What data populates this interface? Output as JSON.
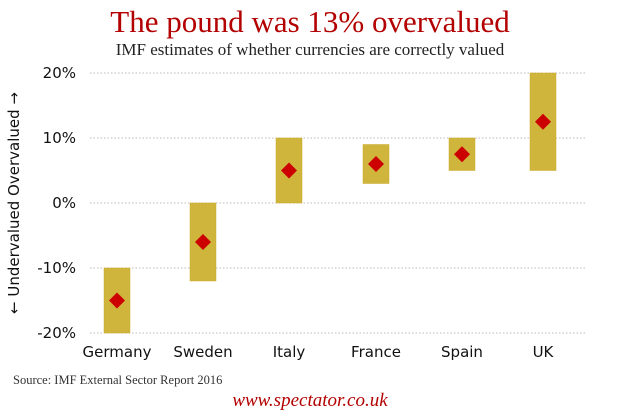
{
  "chart_data": {
    "type": "range-bar",
    "title": "The pound was 13% overvalued",
    "subtitle": "IMF estimates of whether currencies are correctly valued",
    "ylabel": "← Undervalued  Overvalued →",
    "ylim": [
      -20,
      20
    ],
    "yticks": [
      20,
      10,
      0,
      -10,
      -20
    ],
    "ytick_labels": [
      "20%",
      "10%",
      "0%",
      "-10%",
      "-20%"
    ],
    "grid": true,
    "categories": [
      "Germany",
      "Sweden",
      "Italy",
      "France",
      "Spain",
      "UK"
    ],
    "low": [
      -20,
      -12,
      0,
      3,
      5,
      5
    ],
    "high": [
      -10,
      0,
      10,
      9,
      10,
      20
    ],
    "point": [
      -15,
      -6,
      5,
      6,
      7.5,
      12.5
    ],
    "colors": {
      "bar": "#cfb53b",
      "point": "#cc0000",
      "title": "#b30000",
      "grid": "#bbbbbb"
    }
  },
  "source": "Source: IMF External Sector Report 2016",
  "site": "www.spectator.co.uk"
}
